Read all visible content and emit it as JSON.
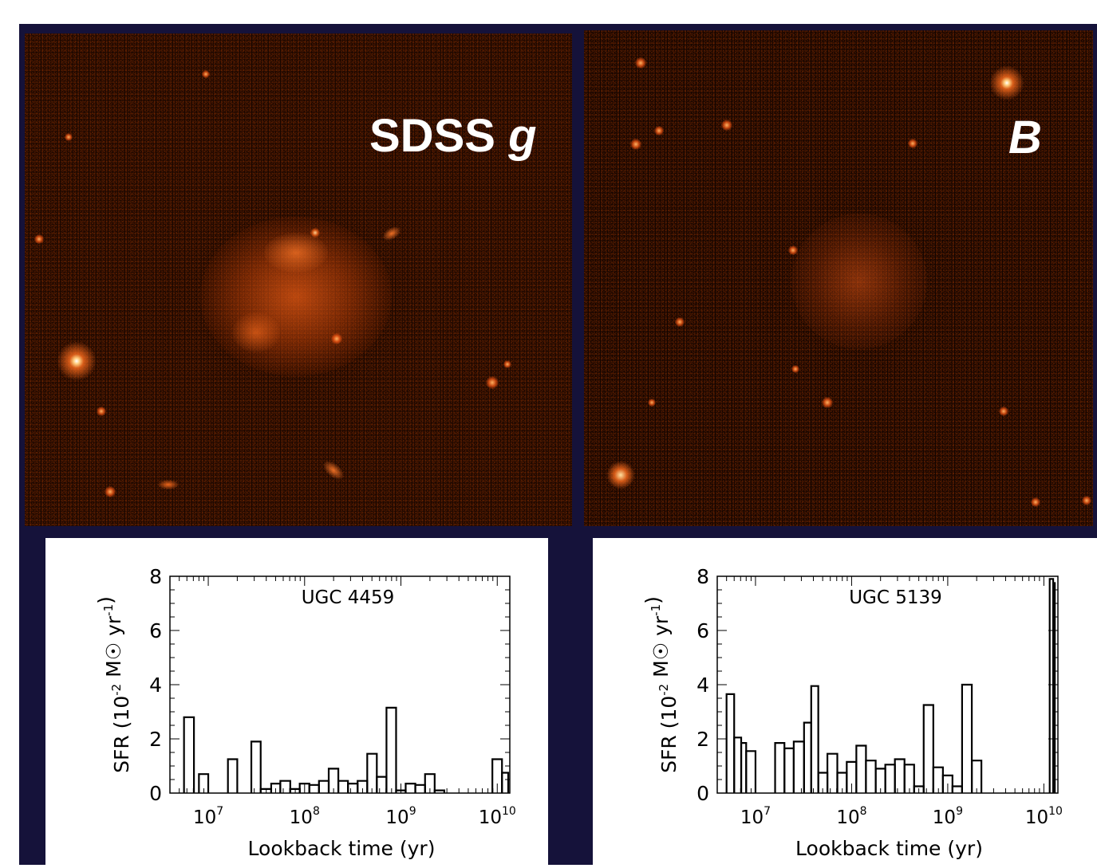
{
  "images": [
    {
      "band_label": "SDSS",
      "band_italic": "g"
    },
    {
      "band_label": "",
      "band_italic": "B"
    }
  ],
  "chart_data": [
    {
      "type": "line",
      "title": "UGC 4459",
      "xlabel": "Lookback time (yr)",
      "ylabel": "SFR (10^-2 M☉ yr^-1)",
      "xscale": "log",
      "xlim": [
        4000000.0,
        13500000000.0
      ],
      "ylim": [
        0,
        8
      ],
      "xticks": [
        "10^7",
        "10^8",
        "10^9",
        "10^10"
      ],
      "yticks": [
        0,
        2,
        4,
        6,
        8
      ],
      "series": [
        {
          "bins": [
            [
              5600000.0,
              7100000.0,
              2.8
            ],
            [
              8000000.0,
              10000000.0,
              0.7
            ],
            [
              16000000.0,
              20000000.0,
              1.25
            ],
            [
              28000000.0,
              35000000.0,
              1.9
            ],
            [
              35000000.0,
              45000000.0,
              0.15
            ],
            [
              45000000.0,
              56000000.0,
              0.35
            ],
            [
              56000000.0,
              71000000.0,
              0.45
            ],
            [
              71000000.0,
              89000000.0,
              0.15
            ],
            [
              89000000.0,
              112000000.0,
              0.35
            ],
            [
              112000000.0,
              141000000.0,
              0.3
            ],
            [
              141000000.0,
              178000000.0,
              0.45
            ],
            [
              178000000.0,
              224000000.0,
              0.9
            ],
            [
              224000000.0,
              282000000.0,
              0.45
            ],
            [
              282000000.0,
              355000000.0,
              0.35
            ],
            [
              355000000.0,
              447000000.0,
              0.45
            ],
            [
              447000000.0,
              562000000.0,
              1.45
            ],
            [
              562000000.0,
              708000000.0,
              0.6
            ],
            [
              708000000.0,
              891000000.0,
              3.15
            ],
            [
              891000000.0,
              1120000000.0,
              0.1
            ],
            [
              1120000000.0,
              1410000000.0,
              0.35
            ],
            [
              1410000000.0,
              1780000000.0,
              0.3
            ],
            [
              1780000000.0,
              2240000000.0,
              0.7
            ],
            [
              2240000000.0,
              2820000000.0,
              0.1
            ],
            [
              8900000000.0,
              11200000000.0,
              1.25
            ],
            [
              11200000000.0,
              13000000000.0,
              0.75
            ]
          ]
        }
      ]
    },
    {
      "type": "line",
      "title": "UGC 5139",
      "xlabel": "Lookback time (yr)",
      "ylabel": "SFR (10^-2 M☉ yr^-1)",
      "xscale": "log",
      "xlim": [
        4000000.0,
        14000000000.0
      ],
      "ylim": [
        0,
        8
      ],
      "xticks": [
        "10^7",
        "10^8",
        "10^9",
        "10^10"
      ],
      "yticks": [
        0,
        2,
        4,
        6,
        8
      ],
      "series": [
        {
          "bins": [
            [
              5000000.0,
              6000000.0,
              3.65
            ],
            [
              6000000.0,
              7100000.0,
              2.05
            ],
            [
              7100000.0,
              8000000.0,
              1.85
            ],
            [
              8000000.0,
              10000000.0,
              1.55
            ],
            [
              16000000.0,
              20000000.0,
              1.85
            ],
            [
              20000000.0,
              25000000.0,
              1.65
            ],
            [
              25000000.0,
              32000000.0,
              1.9
            ],
            [
              32000000.0,
              38000000.0,
              2.6
            ],
            [
              38000000.0,
              45000000.0,
              3.95
            ],
            [
              45000000.0,
              56000000.0,
              0.75
            ],
            [
              56000000.0,
              71000000.0,
              1.45
            ],
            [
              71000000.0,
              89000000.0,
              0.75
            ],
            [
              89000000.0,
              112000000.0,
              1.15
            ],
            [
              112000000.0,
              141000000.0,
              1.75
            ],
            [
              141000000.0,
              178000000.0,
              1.2
            ],
            [
              178000000.0,
              224000000.0,
              0.9
            ],
            [
              224000000.0,
              282000000.0,
              1.05
            ],
            [
              282000000.0,
              355000000.0,
              1.25
            ],
            [
              355000000.0,
              447000000.0,
              1.05
            ],
            [
              447000000.0,
              562000000.0,
              0.25
            ],
            [
              562000000.0,
              708000000.0,
              3.25
            ],
            [
              708000000.0,
              891000000.0,
              0.95
            ],
            [
              891000000.0,
              1120000000.0,
              0.65
            ],
            [
              1120000000.0,
              1410000000.0,
              0.25
            ],
            [
              1410000000.0,
              1780000000.0,
              4.0
            ],
            [
              1780000000.0,
              2240000000.0,
              1.2
            ],
            [
              11500000000.0,
              12500000000.0,
              7.9
            ],
            [
              12500000000.0,
              13000000000.0,
              7.75
            ]
          ]
        }
      ]
    }
  ]
}
